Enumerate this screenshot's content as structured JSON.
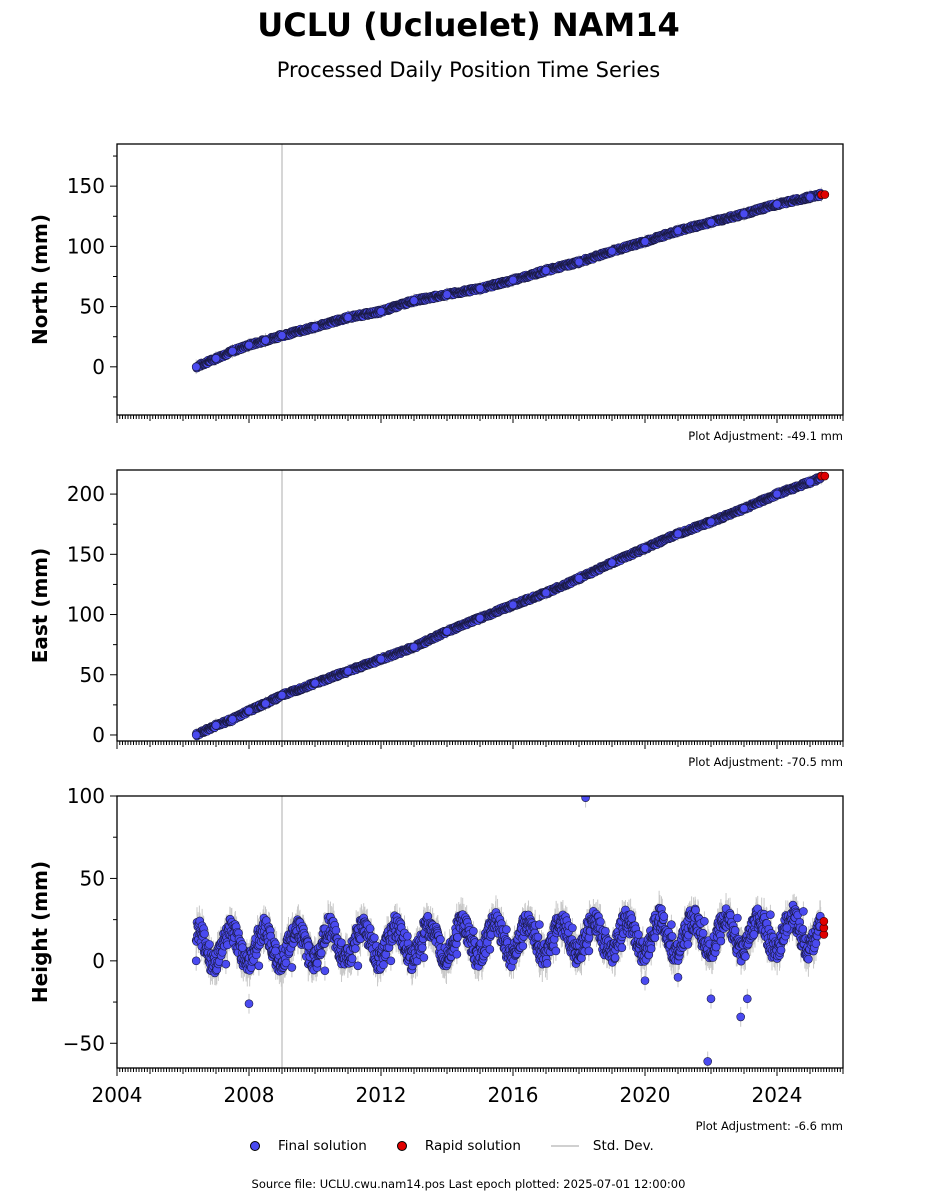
{
  "title": "UCLU (Ucluelet) NAM14",
  "subtitle": "Processed Daily Position Time Series",
  "source_text": "Source file: UCLU.cwu.nam14.pos  Last epoch plotted: 2025-07-01 12:00:00",
  "legend": {
    "final": "Final solution",
    "rapid": "Rapid solution",
    "std": "Std. Dev."
  },
  "colors": {
    "final": "#4a4af0",
    "rapid": "#e00000",
    "std": "#c8c8c8",
    "event_line": "#c8c8c8"
  },
  "chart_data": [
    {
      "type": "scatter",
      "ylabel": "North (mm)",
      "adjustment": "Plot Adjustment: -49.1 mm",
      "xlim": [
        2004,
        2026
      ],
      "ylim": [
        -40,
        185
      ],
      "yticks": [
        0,
        50,
        100,
        150
      ],
      "event_line_x": 2009.0,
      "series": [
        {
          "name": "Final solution",
          "points": [
            [
              2006.4,
              0
            ],
            [
              2007.0,
              7
            ],
            [
              2007.5,
              13
            ],
            [
              2008.0,
              18
            ],
            [
              2008.5,
              22
            ],
            [
              2009.0,
              26
            ],
            [
              2010.0,
              33
            ],
            [
              2011.0,
              41
            ],
            [
              2012.0,
              46
            ],
            [
              2013.0,
              55
            ],
            [
              2014.0,
              60
            ],
            [
              2015.0,
              65
            ],
            [
              2016.0,
              72
            ],
            [
              2017.0,
              80
            ],
            [
              2018.0,
              87
            ],
            [
              2019.0,
              96
            ],
            [
              2020.0,
              104
            ],
            [
              2021.0,
              113
            ],
            [
              2022.0,
              120
            ],
            [
              2023.0,
              127
            ],
            [
              2024.0,
              135
            ],
            [
              2025.0,
              141
            ],
            [
              2025.35,
              143
            ]
          ]
        },
        {
          "name": "Rapid solution",
          "points": [
            [
              2025.35,
              143
            ],
            [
              2025.45,
              143
            ]
          ]
        }
      ]
    },
    {
      "type": "scatter",
      "ylabel": "East (mm)",
      "adjustment": "Plot Adjustment: -70.5 mm",
      "xlim": [
        2004,
        2026
      ],
      "ylim": [
        -5,
        220
      ],
      "yticks": [
        0,
        50,
        100,
        150,
        200
      ],
      "event_line_x": 2009.0,
      "series": [
        {
          "name": "Final solution",
          "points": [
            [
              2006.4,
              0
            ],
            [
              2007.0,
              8
            ],
            [
              2007.5,
              13
            ],
            [
              2008.0,
              20
            ],
            [
              2008.5,
              26
            ],
            [
              2009.0,
              33
            ],
            [
              2010.0,
              43
            ],
            [
              2011.0,
              53
            ],
            [
              2012.0,
              63
            ],
            [
              2013.0,
              73
            ],
            [
              2014.0,
              86
            ],
            [
              2015.0,
              97
            ],
            [
              2016.0,
              108
            ],
            [
              2017.0,
              118
            ],
            [
              2018.0,
              130
            ],
            [
              2019.0,
              143
            ],
            [
              2020.0,
              155
            ],
            [
              2021.0,
              167
            ],
            [
              2022.0,
              177
            ],
            [
              2023.0,
              188
            ],
            [
              2024.0,
              200
            ],
            [
              2025.0,
              210
            ],
            [
              2025.35,
              214
            ]
          ]
        },
        {
          "name": "Rapid solution",
          "points": [
            [
              2025.35,
              215
            ],
            [
              2025.45,
              215
            ]
          ]
        }
      ]
    },
    {
      "type": "scatter",
      "ylabel": "Height (mm)",
      "adjustment": "Plot Adjustment: -6.6 mm",
      "xlim": [
        2004,
        2026
      ],
      "ylim": [
        -65,
        100
      ],
      "yticks": [
        -50,
        0,
        50,
        100
      ],
      "xticks": [
        2004,
        2008,
        2012,
        2016,
        2020,
        2024
      ],
      "event_line_x": 2009.0,
      "series": [
        {
          "name": "Final solution",
          "points": [
            [
              2006.4,
              0
            ],
            [
              2006.8,
              10
            ],
            [
              2007.3,
              -2
            ],
            [
              2007.8,
              8
            ],
            [
              2008.0,
              -26
            ],
            [
              2008.3,
              -3
            ],
            [
              2008.8,
              6
            ],
            [
              2009.3,
              -4
            ],
            [
              2009.8,
              9
            ],
            [
              2010.3,
              -6
            ],
            [
              2010.8,
              11
            ],
            [
              2011.3,
              -3
            ],
            [
              2011.8,
              14
            ],
            [
              2012.3,
              0
            ],
            [
              2012.8,
              15
            ],
            [
              2013.3,
              2
            ],
            [
              2013.8,
              13
            ],
            [
              2014.3,
              4
            ],
            [
              2014.8,
              18
            ],
            [
              2015.3,
              7
            ],
            [
              2015.8,
              19
            ],
            [
              2016.3,
              9
            ],
            [
              2016.8,
              22
            ],
            [
              2017.3,
              6
            ],
            [
              2017.8,
              20
            ],
            [
              2018.2,
              99
            ],
            [
              2018.3,
              6
            ],
            [
              2018.8,
              18
            ],
            [
              2019.3,
              8
            ],
            [
              2019.8,
              16
            ],
            [
              2020.0,
              -12
            ],
            [
              2020.3,
              14
            ],
            [
              2020.8,
              22
            ],
            [
              2021.0,
              -10
            ],
            [
              2021.3,
              10
            ],
            [
              2021.8,
              24
            ],
            [
              2021.9,
              -61
            ],
            [
              2022.0,
              -23
            ],
            [
              2022.3,
              12
            ],
            [
              2022.8,
              26
            ],
            [
              2022.9,
              -34
            ],
            [
              2023.1,
              -23
            ],
            [
              2023.3,
              16
            ],
            [
              2023.8,
              28
            ],
            [
              2024.3,
              20
            ],
            [
              2024.8,
              30
            ],
            [
              2025.3,
              21
            ]
          ]
        },
        {
          "name": "Rapid solution",
          "points": [
            [
              2025.42,
              16
            ],
            [
              2025.42,
              20
            ],
            [
              2025.42,
              24
            ]
          ]
        }
      ]
    }
  ]
}
